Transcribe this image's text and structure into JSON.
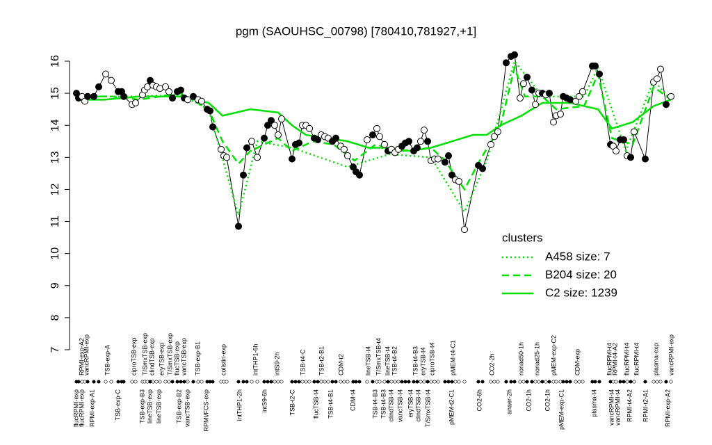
{
  "chart_data": {
    "type": "line",
    "title": "pgm (SAOUHSC_00798) [780410,781927,+1]",
    "xlim": [
      105,
      970
    ],
    "ylim": [
      7,
      16
    ],
    "yticks": [
      7,
      8,
      9,
      10,
      11,
      12,
      13,
      14,
      15,
      16
    ],
    "legend_title": "clusters",
    "legend": "right",
    "x": [
      110,
      113,
      118,
      122,
      126,
      135,
      142,
      152,
      160,
      170,
      175,
      178,
      190,
      195,
      205,
      208,
      212,
      216,
      220,
      225,
      230,
      238,
      243,
      248,
      255,
      260,
      265,
      270,
      278,
      285,
      290,
      298,
      302,
      306,
      318,
      322,
      326,
      343,
      350,
      355,
      362,
      370,
      380,
      385,
      390,
      395,
      400,
      405,
      420,
      425,
      430,
      435,
      440,
      445,
      452,
      457,
      462,
      467,
      472,
      478,
      483,
      490,
      495,
      500,
      508,
      512,
      517,
      528,
      536,
      542,
      546,
      553,
      558,
      563,
      568,
      573,
      578,
      583,
      588,
      595,
      600,
      605,
      610,
      615,
      620,
      625,
      630,
      640,
      645,
      650,
      655,
      660,
      668,
      688,
      694,
      706,
      711,
      716,
      728,
      735,
      740,
      748,
      753,
      758,
      765,
      770,
      775,
      780,
      785,
      790,
      796,
      800,
      806,
      810,
      815,
      820,
      828,
      833,
      838,
      852,
      856,
      862,
      878,
      882,
      886,
      892,
      897,
      902,
      907,
      912,
      928,
      940,
      945,
      950,
      958,
      965
    ],
    "series": [
      {
        "color": "#000000",
        "values": [
          15.0,
          14.85,
          14.9,
          14.75,
          14.9,
          14.9,
          15.2,
          15.6,
          15.4,
          15.05,
          15.05,
          14.9,
          14.65,
          14.7,
          14.95,
          15.1,
          15.2,
          15.4,
          15.25,
          15.2,
          15.15,
          15.2,
          15.05,
          14.85,
          15.05,
          15.1,
          14.85,
          14.8,
          14.9,
          14.8,
          14.75,
          14.5,
          14.45,
          13.95,
          13.25,
          13.05,
          13.0,
          10.85,
          12.45,
          13.3,
          13.5,
          13.0,
          13.6,
          14.0,
          14.15,
          14.0,
          13.7,
          14.2,
          12.95,
          13.4,
          13.45,
          14.0,
          14.0,
          13.9,
          13.6,
          13.55,
          13.7,
          13.65,
          13.6,
          13.5,
          13.6,
          13.35,
          13.25,
          13.05,
          12.7,
          12.55,
          12.45,
          13.55,
          13.7,
          13.9,
          13.65,
          13.4,
          13.2,
          13.25,
          13.15,
          13.25,
          13.35,
          13.45,
          13.5,
          13.2,
          13.3,
          13.5,
          13.85,
          13.5,
          12.9,
          12.95,
          12.95,
          12.85,
          13.05,
          12.45,
          12.3,
          12.25,
          10.75,
          12.75,
          12.65,
          13.4,
          13.65,
          13.8,
          15.95,
          16.15,
          16.2,
          14.85,
          15.3,
          15.5,
          15.1,
          14.65,
          15.0,
          15.0,
          14.95,
          15.0,
          14.1,
          14.3,
          14.35,
          14.9,
          14.85,
          14.8,
          14.75,
          14.9,
          15.05,
          15.85,
          15.85,
          15.6,
          13.4,
          13.35,
          13.2,
          13.55,
          13.55,
          13.05,
          13.0,
          13.8,
          12.95,
          15.35,
          15.45,
          15.75,
          14.65,
          14.9
        ],
        "filled": [
          true,
          true,
          false,
          false,
          true,
          true,
          true,
          false,
          false,
          true,
          true,
          true,
          false,
          false,
          false,
          false,
          false,
          true,
          false,
          false,
          false,
          false,
          false,
          true,
          true,
          true,
          true,
          false,
          true,
          false,
          false,
          true,
          true,
          true,
          false,
          false,
          false,
          true,
          true,
          true,
          false,
          false,
          true,
          true,
          true,
          false,
          false,
          false,
          true,
          true,
          true,
          false,
          false,
          false,
          true,
          true,
          false,
          false,
          false,
          true,
          true,
          false,
          false,
          false,
          true,
          true,
          true,
          false,
          true,
          false,
          false,
          false,
          true,
          false,
          false,
          false,
          true,
          true,
          true,
          true,
          true,
          false,
          false,
          true,
          false,
          false,
          false,
          true,
          true,
          true,
          false,
          false,
          false,
          true,
          true,
          false,
          false,
          false,
          true,
          true,
          true,
          false,
          false,
          true,
          true,
          false,
          false,
          true,
          false,
          true,
          false,
          false,
          false,
          true,
          true,
          true,
          false,
          false,
          false,
          true,
          true,
          true,
          true,
          false,
          false,
          true,
          true,
          false,
          true,
          false,
          true,
          false,
          false,
          false,
          true,
          false
        ]
      },
      {
        "name": "A458 size: 7",
        "color": "#00e000",
        "style": "dotted",
        "x": [
          110,
          200,
          260,
          300,
          343,
          370,
          420,
          500,
          560,
          620,
          668,
          700,
          740,
          780,
          840,
          860,
          900,
          940,
          965
        ],
        "values": [
          14.9,
          14.9,
          14.95,
          14.5,
          11.2,
          13.5,
          13.3,
          12.7,
          13.1,
          13.0,
          11.3,
          12.9,
          16.0,
          14.9,
          14.9,
          15.8,
          13.2,
          15.4,
          14.8
        ]
      },
      {
        "name": "B204 size: 20",
        "color": "#00e000",
        "style": "dashed",
        "x": [
          110,
          160,
          200,
          260,
          300,
          320,
          343,
          360,
          400,
          420,
          450,
          480,
          510,
          540,
          580,
          620,
          640,
          668,
          690,
          720,
          740,
          755,
          780,
          800,
          840,
          860,
          880,
          910,
          940,
          965
        ],
        "values": [
          14.9,
          14.9,
          14.8,
          15.0,
          14.5,
          13.5,
          12.8,
          13.2,
          13.6,
          13.2,
          13.5,
          13.4,
          12.9,
          13.4,
          13.2,
          13.3,
          12.9,
          12.0,
          12.9,
          14.0,
          15.8,
          14.9,
          14.9,
          14.5,
          14.6,
          15.6,
          13.6,
          13.4,
          15.2,
          14.8
        ]
      },
      {
        "name": "C2 size: 1239",
        "color": "#00e000",
        "style": "solid",
        "x": [
          110,
          150,
          200,
          260,
          300,
          320,
          360,
          400,
          420,
          440,
          470,
          500,
          530,
          560,
          590,
          620,
          650,
          680,
          700,
          720,
          750,
          780,
          820,
          860,
          880,
          910,
          940,
          965
        ],
        "values": [
          14.8,
          14.8,
          14.9,
          14.9,
          14.7,
          14.3,
          14.5,
          14.4,
          14.0,
          13.7,
          13.6,
          13.5,
          13.3,
          13.3,
          13.2,
          13.3,
          13.5,
          13.7,
          13.7,
          14.0,
          14.3,
          14.7,
          14.7,
          14.5,
          13.9,
          14.1,
          14.6,
          14.8
        ]
      }
    ],
    "x_labels_top": [
      {
        "x": 118,
        "label": "RPMI-exp-A2"
      },
      {
        "x": 125,
        "label": "vancRPMI-exp"
      },
      {
        "x": 155,
        "label": "TSB-exp-A"
      },
      {
        "x": 193,
        "label": "ciproTSB-exp"
      },
      {
        "x": 209,
        "label": "T/SmxTSB-exp"
      },
      {
        "x": 219,
        "label": "clindTSB-exp"
      },
      {
        "x": 233,
        "label": "eryTSB-exp"
      },
      {
        "x": 245,
        "label": "T/SmxTSB-exp"
      },
      {
        "x": 255,
        "label": "flucTSB-exp"
      },
      {
        "x": 265,
        "label": "vancTSB-exp"
      },
      {
        "x": 285,
        "label": "TSB-exp-B1"
      },
      {
        "x": 322,
        "label": "colistin-exp"
      },
      {
        "x": 368,
        "label": "intTHP1-6h"
      },
      {
        "x": 399,
        "label": "intS9-2h"
      },
      {
        "x": 436,
        "label": "TSB-t4-C"
      },
      {
        "x": 463,
        "label": "TSB-t2-B1"
      },
      {
        "x": 491,
        "label": "CDM-t2"
      },
      {
        "x": 530,
        "label": "lineTSB-t4"
      },
      {
        "x": 545,
        "label": "T/SmxTSB-t4"
      },
      {
        "x": 558,
        "label": "lineTSB-t4"
      },
      {
        "x": 568,
        "label": "TSB-t4-B2"
      },
      {
        "x": 598,
        "label": "TSB-t4-B3"
      },
      {
        "x": 609,
        "label": "eryTSB-t4"
      },
      {
        "x": 622,
        "label": "ciproTSB-t4"
      },
      {
        "x": 652,
        "label": "pMEM-t4-C1"
      },
      {
        "x": 708,
        "label": "CO2-2h"
      },
      {
        "x": 750,
        "label": "nonad50-1h"
      },
      {
        "x": 773,
        "label": "nonad25-1h"
      },
      {
        "x": 797,
        "label": "pMEM-exp-C2"
      },
      {
        "x": 831,
        "label": "CDM-exp"
      },
      {
        "x": 877,
        "label": "flucRPMI-t4"
      },
      {
        "x": 885,
        "label": "RPMI-t4-A2"
      },
      {
        "x": 902,
        "label": "flucRPMI-t4"
      },
      {
        "x": 916,
        "label": "flucRPMI-t4"
      },
      {
        "x": 944,
        "label": "plasma-exp"
      },
      {
        "x": 966,
        "label": "vancRPMI-exp"
      }
    ],
    "x_labels_bottom": [
      {
        "x": 110,
        "label": "flucRPMI-exp"
      },
      {
        "x": 118,
        "label": "flucRPMI-exp"
      },
      {
        "x": 133,
        "label": "RPMI-exp-A1"
      },
      {
        "x": 170,
        "label": "TSB-exp-C"
      },
      {
        "x": 205,
        "label": "TSB-exp-B3"
      },
      {
        "x": 216,
        "label": "lineTSB-exp"
      },
      {
        "x": 229,
        "label": "lineTSB-exp"
      },
      {
        "x": 258,
        "label": "TSB-exp-B2"
      },
      {
        "x": 270,
        "label": "vancTSB-exp"
      },
      {
        "x": 297,
        "label": "RPMI/FCS-exp"
      },
      {
        "x": 345,
        "label": "intTHP1-2h"
      },
      {
        "x": 381,
        "label": "intS9-6h"
      },
      {
        "x": 421,
        "label": "TSB-t2-C"
      },
      {
        "x": 455,
        "label": "flucTSB-t4"
      },
      {
        "x": 476,
        "label": "TSB-t4-B1"
      },
      {
        "x": 508,
        "label": "CDM-t4"
      },
      {
        "x": 540,
        "label": "TSB-t4-B3"
      },
      {
        "x": 552,
        "label": "TSB-t4-B3"
      },
      {
        "x": 563,
        "label": "clindTSB-t4"
      },
      {
        "x": 576,
        "label": "vancTSB-t4"
      },
      {
        "x": 591,
        "label": "eryTSB-t4"
      },
      {
        "x": 602,
        "label": "clindTSB-t4"
      },
      {
        "x": 616,
        "label": "T/SmxTSB-t4"
      },
      {
        "x": 650,
        "label": "pMEM-t2-C1"
      },
      {
        "x": 690,
        "label": "CO2-6h"
      },
      {
        "x": 733,
        "label": "anaer-2h"
      },
      {
        "x": 761,
        "label": "CO2-1h"
      },
      {
        "x": 788,
        "label": "CO2-1h"
      },
      {
        "x": 808,
        "label": "pMEM-exp-C1"
      },
      {
        "x": 855,
        "label": "plasma-t4"
      },
      {
        "x": 880,
        "label": "vancRPMI-t4"
      },
      {
        "x": 889,
        "label": "vancRPMI-t4"
      },
      {
        "x": 906,
        "label": "RPMI-t4-A2"
      },
      {
        "x": 929,
        "label": "RPMI-t2-A1"
      },
      {
        "x": 961,
        "label": "RPMI-exp-A2"
      }
    ]
  }
}
